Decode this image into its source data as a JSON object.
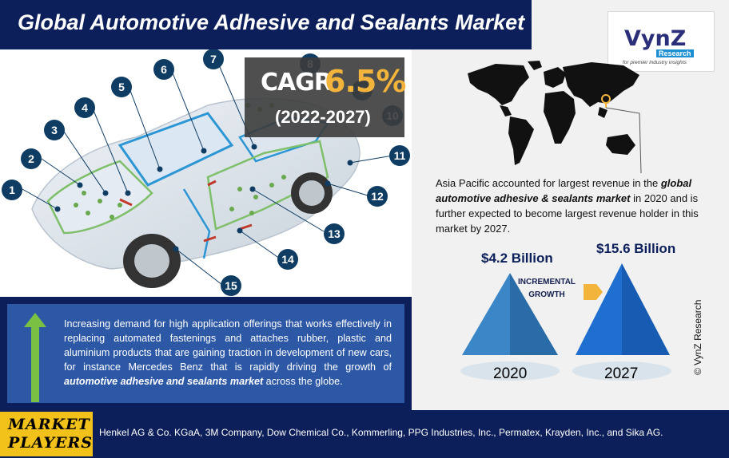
{
  "title": "Global Automotive Adhesive and Sealants Market",
  "logo": {
    "name": "VynZ",
    "sub": "Research",
    "tagline": "for premier industry insights"
  },
  "cagr": {
    "label": "CAGR",
    "value": "6.5%",
    "period": "(2022-2027)"
  },
  "car_markers": [
    "1",
    "2",
    "3",
    "4",
    "5",
    "6",
    "7",
    "8",
    "9",
    "10",
    "11",
    "12",
    "13",
    "14",
    "15"
  ],
  "description": {
    "part1": "Increasing demand for high application offerings that works effectively in replacing automated fastenings and attaches rubber, plastic and aluminium products that are gaining traction in development of new cars, for instance Mercedes Benz that is rapidly driving the growth of ",
    "emph": "automotive adhesive and sealants market",
    "part2": " across the globe."
  },
  "region_text": {
    "part1": "Asia Pacific accounted for largest revenue in the ",
    "emph": "global automotive adhesive & sealants market",
    "part2": " in 2020 and is further expected to become largest revenue holder in this market by 2027."
  },
  "market_values": {
    "v2020": "$4.2 Billion",
    "v2027": "$15.6 Billion",
    "year1": "2020",
    "year2": "2027",
    "incremental_line1": "INCREMENTAL",
    "incremental_line2": "GROWTH"
  },
  "copyright": "© VynZ Research",
  "market_players": {
    "label_line1": "MARKET",
    "label_line2": "PLAYERS",
    "list": "Henkel AG & Co. KGaA, 3M Company, Dow Chemical Co., Kommerling, PPG Industries, Inc., Permatex, Krayden, Inc., and Sika AG."
  },
  "colors": {
    "navy": "#0c1f5a",
    "blue": "#2d58a6",
    "gold": "#f2c21b",
    "cagr_gold": "#f2b43a",
    "arrow_green": "#7ac143"
  }
}
